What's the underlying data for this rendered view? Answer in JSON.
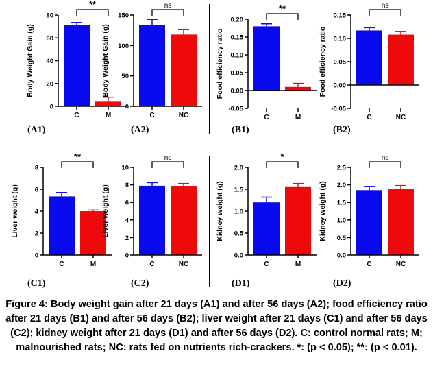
{
  "colors": {
    "C": "#0a0aee",
    "M": "#ee0a0a",
    "NC": "#ee0a0a",
    "axis": "#000000"
  },
  "chart_data": [
    {
      "id": "A1",
      "type": "bar",
      "panel_label": "(A1)",
      "ylabel": "Body Weight Gain (g)",
      "categories": [
        "C",
        "M"
      ],
      "values": [
        71,
        4
      ],
      "errors": [
        2.5,
        4
      ],
      "ylim": [
        0,
        80
      ],
      "yticks": [
        0,
        20,
        40,
        60,
        80
      ],
      "tick_labels": [
        "0",
        "20",
        "40",
        "60",
        "80"
      ],
      "significance": "**"
    },
    {
      "id": "A2",
      "type": "bar",
      "panel_label": "(A2)",
      "ylabel": "Body Weight Gain (g)",
      "categories": [
        "C",
        "NC"
      ],
      "values": [
        134,
        118
      ],
      "errors": [
        9,
        8
      ],
      "ylim": [
        0,
        150
      ],
      "yticks": [
        0,
        50,
        100,
        150
      ],
      "tick_labels": [
        "0",
        "50",
        "100",
        "150"
      ],
      "significance": "ns"
    },
    {
      "id": "B1",
      "type": "bar",
      "panel_label": "(B1)",
      "ylabel": "Food efficiency ratio",
      "categories": [
        "C",
        "M"
      ],
      "values": [
        0.18,
        0.01
      ],
      "errors": [
        0.007,
        0.01
      ],
      "ylim": [
        -0.05,
        0.2
      ],
      "yticks": [
        -0.05,
        0,
        0.05,
        0.1,
        0.15,
        0.2
      ],
      "tick_labels": [
        "-0.05",
        "0.00",
        "0.05",
        "0.10",
        "0.15",
        "0.20"
      ],
      "significance": "**"
    },
    {
      "id": "B2",
      "type": "bar",
      "panel_label": "(B2)",
      "ylabel": "Food efficiency ratio",
      "categories": [
        "C",
        "NC"
      ],
      "values": [
        0.117,
        0.108
      ],
      "errors": [
        0.006,
        0.007
      ],
      "ylim": [
        -0.05,
        0.15
      ],
      "yticks": [
        -0.05,
        0,
        0.05,
        0.1,
        0.15
      ],
      "tick_labels": [
        "-0.05",
        "0.00",
        "0.05",
        "0.10",
        "0.15"
      ],
      "significance": "ns"
    },
    {
      "id": "C1",
      "type": "bar",
      "panel_label": "(C1)",
      "ylabel": "Liver weight (g)",
      "categories": [
        "C",
        "M"
      ],
      "values": [
        5.35,
        4.0
      ],
      "errors": [
        0.35,
        0.1
      ],
      "ylim": [
        0,
        8
      ],
      "yticks": [
        0,
        2,
        4,
        6,
        8
      ],
      "tick_labels": [
        "0",
        "2",
        "4",
        "6",
        "8"
      ],
      "significance": "**"
    },
    {
      "id": "C2",
      "type": "bar",
      "panel_label": "(C2)",
      "ylabel": "Liver weight (g)",
      "categories": [
        "C",
        "NC"
      ],
      "values": [
        7.9,
        7.85
      ],
      "errors": [
        0.35,
        0.3
      ],
      "ylim": [
        0,
        10
      ],
      "yticks": [
        0,
        2,
        4,
        6,
        8,
        10
      ],
      "tick_labels": [
        "0",
        "2",
        "4",
        "6",
        "8",
        "10"
      ],
      "significance": "ns"
    },
    {
      "id": "D1",
      "type": "bar",
      "panel_label": "(D1)",
      "ylabel": "Kidney weight (g)",
      "categories": [
        "C",
        "M"
      ],
      "values": [
        1.2,
        1.55
      ],
      "errors": [
        0.12,
        0.08
      ],
      "ylim": [
        0,
        2
      ],
      "yticks": [
        0,
        0.5,
        1,
        1.5,
        2
      ],
      "tick_labels": [
        "0.0",
        "0.5",
        "1.0",
        "1.5",
        "2.0"
      ],
      "significance": "*"
    },
    {
      "id": "D2",
      "type": "bar",
      "panel_label": "(D2)",
      "ylabel": "Kidney weight (g)",
      "categories": [
        "C",
        "NC"
      ],
      "values": [
        1.85,
        1.88
      ],
      "errors": [
        0.1,
        0.1
      ],
      "ylim": [
        0,
        2.5
      ],
      "yticks": [
        0,
        0.5,
        1,
        1.5,
        2,
        2.5
      ],
      "tick_labels": [
        "0.0",
        "0.5",
        "1.0",
        "1.5",
        "2.0",
        "2.5"
      ],
      "significance": "ns"
    }
  ],
  "caption": "Figure 4: Body weight gain after 21 days (A1) and after 56 days (A2); food efficiency ratio after 21 days (B1) and after 56 days (B2); liver weight after 21 days (C1) and after 56 days (C2); kidney weight after 21 days (D1) and after 56 days (D2). C: control normal rats; M; malnourished rats; NC: rats fed on nutrients rich-crackers. *: (p < 0.05); **: (p < 0.01)."
}
